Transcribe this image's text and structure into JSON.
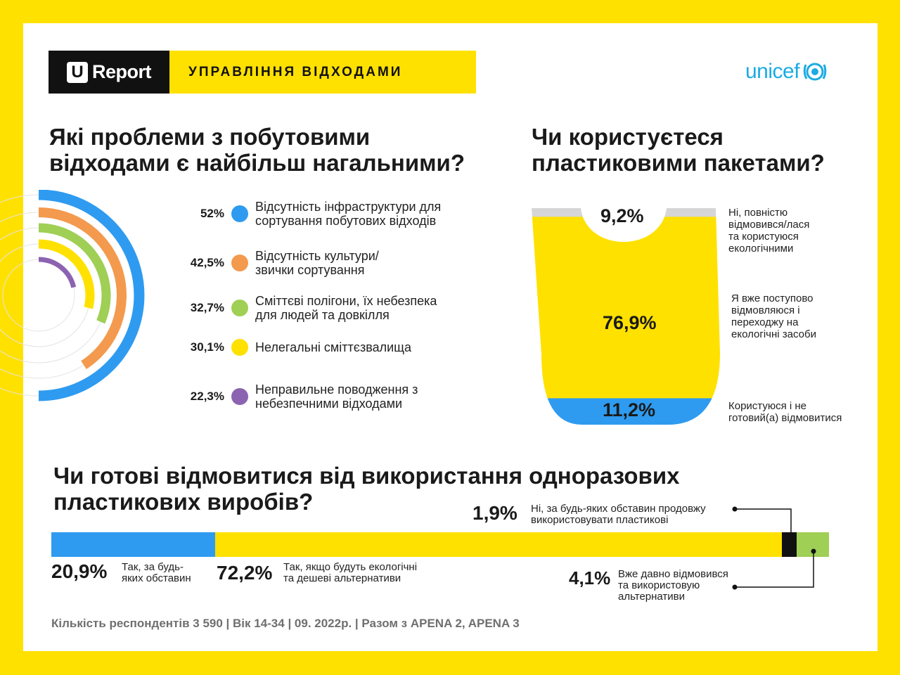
{
  "header": {
    "brand_letter": "U",
    "brand_name": "Report",
    "title": "УПРАВЛІННЯ ВІДХОДАМИ",
    "partner": "unicef"
  },
  "colors": {
    "blue": "#2E9BF0",
    "orange": "#F39A4E",
    "green": "#9FCF55",
    "yellow": "#FFE100",
    "purple": "#8C63B0",
    "gray": "#D6D6D6",
    "black": "#111111"
  },
  "chart_data": [
    {
      "type": "radial-bar",
      "title": "Які проблеми з побутовими відходами є найбільш нагальними?",
      "categories": [
        "Відсутність інфраструктури для сортування побутових відходів",
        "Відсутність культури/ звички сортування",
        "Сміттєві полігони, їх небезпека для людей та довкілля",
        "Нелегальні сміттєзвалища",
        "Неправильне поводження з небезпечними відходами"
      ],
      "values": [
        52,
        42.5,
        32.7,
        30.1,
        22.3
      ],
      "labels": [
        "52%",
        "42,5%",
        "32,7%",
        "30,1%",
        "22,3%"
      ],
      "colors": [
        "#2E9BF0",
        "#F39A4E",
        "#9FCF55",
        "#FFE100",
        "#8C63B0"
      ],
      "unit": "%"
    },
    {
      "type": "pictogram-stacked",
      "title": "Чи користуєтеся пластиковими пакетами?",
      "segments": [
        {
          "label": "Ні, повністю відмовився/лася та користуюся екологічними",
          "value": 9.2,
          "text": "9,2%",
          "color": "#D6D6D6"
        },
        {
          "label": "Я вже поступово відмовляюся і переходжу на екологічні засоби",
          "value": 76.9,
          "text": "76,9%",
          "color": "#FFE100"
        },
        {
          "label": "Користуюся і не готовий(а) відмовитися",
          "value": 11.2,
          "text": "11,2%",
          "color": "#2E9BF0"
        }
      ],
      "note_lines": [
        [
          "Ні, повністю",
          "відмовився/лася",
          "та користуюся",
          "екологічними"
        ],
        [
          "Я вже поступово",
          "відмовляюся і",
          "переходжу на",
          "екологічні засоби"
        ],
        [
          "Користуюся і не",
          "готовий(а) відмовитися"
        ]
      ]
    },
    {
      "type": "stacked-bar",
      "title": "Чи готові відмовитися від використання одноразових пластикових виробів?",
      "segments": [
        {
          "label": "Так, за будь-яких обставин",
          "value": 20.9,
          "text": "20,9%",
          "color": "#2E9BF0"
        },
        {
          "label": "Так, якщо будуть екологічні та дешеві альтернативи",
          "value": 72.2,
          "text": "72,2%",
          "color": "#FFE100"
        },
        {
          "label": "Ні, за будь-яких обставин продовжу використовувати пластикові",
          "value": 1.9,
          "text": "1,9%",
          "color": "#111111"
        },
        {
          "label": "Вже давно відмовився та використовую альтернативи",
          "value": 4.1,
          "text": "4,1%",
          "color": "#9FCF55"
        }
      ],
      "note_lines": [
        [
          "Так, за будь-",
          "яких обставин"
        ],
        [
          "Так, якщо будуть екологічні",
          "та дешеві альтернативи"
        ],
        [
          "Ні, за будь-яких обставин продовжу",
          "використовувати пластикові"
        ],
        [
          "Вже давно відмовився",
          "та використовую",
          "альтернативи"
        ]
      ]
    }
  ],
  "sections": {
    "problems_title": [
      "Які проблеми з побутовими",
      "відходами є найбільш нагальними?"
    ],
    "bags_title": [
      "Чи користуєтеся",
      "пластиковими пакетами?"
    ],
    "refuse_title": [
      "Чи готові відмовитися від використання одноразових",
      "пластикових виробів?"
    ]
  },
  "legend_lines": [
    [
      "Відсутність інфраструктури для",
      "сортування побутових відходів"
    ],
    [
      "Відсутність культури/",
      "звички сортування"
    ],
    [
      "Сміттєві полігони, їх небезпека",
      "для людей та довкілля"
    ],
    [
      "Нелегальні сміттєзвалища"
    ],
    [
      "Неправильне поводження з",
      "небезпечними відходами"
    ]
  ],
  "footer": "Кількість респондентів 3 590 |  Вік 14-34 | 09. 2022р. | Разом з APENA 2, APENA 3"
}
